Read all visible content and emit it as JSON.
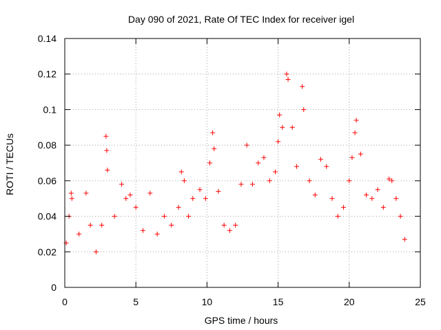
{
  "chart_data": {
    "type": "scatter",
    "title": "Day 090 of 2021, Rate Of TEC Index for receiver igel",
    "xlabel": "GPS time / hours",
    "ylabel": "ROTI / TECUs",
    "xlim": [
      0,
      25
    ],
    "ylim": [
      0,
      0.14
    ],
    "xticks": [
      0,
      5,
      10,
      15,
      20,
      25
    ],
    "xtick_labels": [
      "0",
      "5",
      "10",
      "15",
      "20",
      "25"
    ],
    "yticks": [
      0,
      0.02,
      0.04,
      0.06,
      0.08,
      0.1,
      0.12,
      0.14
    ],
    "ytick_labels": [
      "0",
      "0.02",
      "0.04",
      "0.06",
      "0.08",
      "0.1",
      "0.12",
      "0.14"
    ],
    "grid": true,
    "marker": "plus",
    "color": "#ff0000",
    "series": [
      {
        "name": "ROTI",
        "x": [
          0.1,
          0.3,
          0.45,
          0.5,
          1.0,
          1.5,
          1.8,
          2.2,
          2.6,
          2.9,
          2.95,
          3.0,
          3.5,
          4.0,
          4.3,
          4.6,
          5.0,
          5.5,
          6.0,
          6.5,
          7.0,
          7.5,
          8.0,
          8.2,
          8.4,
          8.7,
          9.0,
          9.5,
          9.9,
          10.2,
          10.4,
          10.5,
          10.8,
          11.2,
          11.6,
          12.0,
          12.4,
          12.8,
          13.2,
          13.6,
          14.0,
          14.4,
          14.8,
          15.0,
          15.1,
          15.3,
          15.6,
          15.7,
          16.0,
          16.3,
          16.7,
          16.8,
          17.2,
          17.6,
          18.0,
          18.4,
          18.8,
          19.2,
          19.6,
          20.0,
          20.2,
          20.4,
          20.5,
          20.8,
          21.2,
          21.6,
          22.0,
          22.4,
          22.8,
          23.0,
          23.3,
          23.6,
          23.9
        ],
        "y": [
          0.025,
          0.04,
          0.053,
          0.05,
          0.03,
          0.053,
          0.035,
          0.02,
          0.035,
          0.085,
          0.077,
          0.066,
          0.04,
          0.058,
          0.05,
          0.052,
          0.045,
          0.032,
          0.053,
          0.03,
          0.04,
          0.035,
          0.045,
          0.065,
          0.06,
          0.04,
          0.05,
          0.055,
          0.05,
          0.07,
          0.087,
          0.078,
          0.054,
          0.035,
          0.032,
          0.035,
          0.058,
          0.08,
          0.058,
          0.07,
          0.073,
          0.06,
          0.065,
          0.082,
          0.097,
          0.09,
          0.12,
          0.117,
          0.09,
          0.068,
          0.113,
          0.1,
          0.06,
          0.052,
          0.072,
          0.068,
          0.05,
          0.04,
          0.045,
          0.06,
          0.073,
          0.087,
          0.094,
          0.075,
          0.052,
          0.05,
          0.055,
          0.045,
          0.061,
          0.06,
          0.05,
          0.04,
          0.027
        ]
      }
    ]
  }
}
